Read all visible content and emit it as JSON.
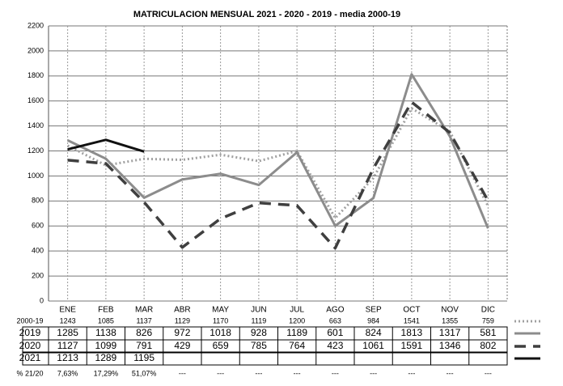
{
  "chart_data": {
    "type": "line",
    "title": "MATRICULACION MENSUAL  2021 - 2020 - 2019 - media 2000-19",
    "categories": [
      "ENE",
      "FEB",
      "MAR",
      "ABR",
      "MAY",
      "JUN",
      "JUL",
      "AGO",
      "SEP",
      "OCT",
      "NOV",
      "DIC"
    ],
    "ylim": [
      0,
      2200
    ],
    "yticks": [
      0,
      200,
      400,
      600,
      800,
      1000,
      1200,
      1400,
      1600,
      1800,
      2000,
      2200
    ],
    "grid": true,
    "series": [
      {
        "name": "2000-19",
        "color": "#a0a0a0",
        "style": "dotted",
        "values": [
          1243,
          1085,
          1137,
          1129,
          1170,
          1119,
          1200,
          663,
          984,
          1541,
          1355,
          759
        ]
      },
      {
        "name": "2019",
        "color": "#8c8c8c",
        "style": "solid",
        "values": [
          1285,
          1138,
          826,
          972,
          1018,
          928,
          1189,
          601,
          824,
          1813,
          1317,
          581
        ]
      },
      {
        "name": "2020",
        "color": "#3f3f3f",
        "style": "dashed",
        "values": [
          1127,
          1099,
          791,
          429,
          659,
          785,
          764,
          423,
          1061,
          1591,
          1346,
          802
        ]
      },
      {
        "name": "2021",
        "color": "#111111",
        "style": "solid",
        "values": [
          1213,
          1289,
          1195,
          null,
          null,
          null,
          null,
          null,
          null,
          null,
          null,
          null
        ]
      }
    ],
    "pct_row": {
      "name": "% 21/20",
      "values": [
        7.63,
        17.29,
        51.07,
        null,
        null,
        null,
        null,
        null,
        null,
        null,
        null,
        null
      ],
      "value_labels": [
        "7,63%",
        "17,29%",
        "51,07%",
        "---",
        "---",
        "---",
        "---",
        "---",
        "---",
        "---",
        "---",
        "---"
      ]
    }
  }
}
